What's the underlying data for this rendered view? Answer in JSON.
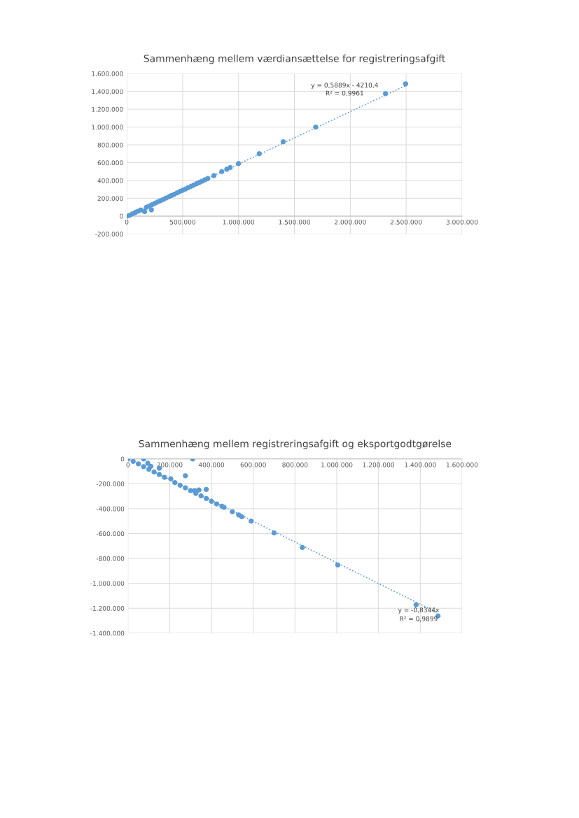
{
  "chart_data": [
    {
      "type": "scatter",
      "title": "Sammenhæng mellem værdiansættelse for registreringsafgift",
      "grid": true,
      "legend": false,
      "marker": "circle",
      "xlim": [
        0,
        3000000
      ],
      "xticks": [
        0,
        {
          "value": 500000,
          "label": "500.000"
        },
        {
          "value": 1000000,
          "label": "1.000.000"
        },
        {
          "value": 1500000,
          "label": "1.500.000"
        },
        {
          "value": 2000000,
          "label": "2.000.000"
        },
        {
          "value": 2500000,
          "label": "2.500.000"
        },
        {
          "value": 3000000,
          "label": "3.000.000"
        }
      ],
      "ylim": [
        -200000,
        1600000
      ],
      "yticks": [
        {
          "value": -200000,
          "label": "-200.000"
        },
        0,
        {
          "value": 200000,
          "label": "200.000"
        },
        {
          "value": 400000,
          "label": "400.000"
        },
        {
          "value": 600000,
          "label": "600.000"
        },
        {
          "value": 800000,
          "label": "800.000"
        },
        {
          "value": 1000000,
          "label": "1.000.000"
        },
        {
          "value": 1200000,
          "label": "1.200.000"
        },
        {
          "value": 1400000,
          "label": "1.400.000"
        },
        {
          "value": 1600000,
          "label": "1.600.000"
        }
      ],
      "series": [
        {
          "color": "#5b9bd5",
          "x": [
            0,
            25000,
            50000,
            75000,
            100000,
            125000,
            160000,
            175000,
            200000,
            220000,
            225000,
            250000,
            275000,
            300000,
            325000,
            350000,
            375000,
            400000,
            425000,
            450000,
            475000,
            500000,
            525000,
            550000,
            575000,
            600000,
            625000,
            650000,
            675000,
            700000,
            725000,
            780000,
            850000,
            895000,
            925000,
            1000000,
            1185000,
            1400000,
            1690000,
            2315000,
            2495000
          ],
          "values": [
            0,
            10000,
            25000,
            40000,
            55000,
            69000,
            50000,
            99000,
            113000,
            70000,
            128000,
            143000,
            158000,
            172000,
            187000,
            202000,
            217000,
            231000,
            246000,
            261000,
            276000,
            290000,
            305000,
            320000,
            335000,
            349000,
            364000,
            379000,
            393000,
            408000,
            423000,
            455000,
            500000,
            527000,
            545000,
            590000,
            700000,
            835000,
            1000000,
            1375000,
            1485000
          ]
        },
        {
          "type": "line",
          "color": "#5b9bd5",
          "line_style": "dotted",
          "marker": "none",
          "x": [
            0,
            2500000
          ],
          "values": [
            -4000,
            1468000
          ]
        }
      ],
      "annotations": [
        "y = 0,5889x - 4210,4",
        "R² = 0,9961"
      ]
    },
    {
      "type": "scatter",
      "title": "Sammenhæng mellem registreringsafgift og eksportgodtgørelse",
      "grid": true,
      "legend": false,
      "marker": "circle",
      "xlim": [
        0,
        1600000
      ],
      "xticks": [
        0,
        {
          "value": 200000,
          "label": "200.000"
        },
        {
          "value": 400000,
          "label": "400.000"
        },
        {
          "value": 600000,
          "label": "600.000"
        },
        {
          "value": 800000,
          "label": "800.000"
        },
        {
          "value": 1000000,
          "label": "1.000.000"
        },
        {
          "value": 1200000,
          "label": "1.200.000"
        },
        {
          "value": 1400000,
          "label": "1.400.000"
        },
        {
          "value": 1600000,
          "label": "1.600.000"
        }
      ],
      "ylim": [
        -1400000,
        0
      ],
      "yticks": [
        {
          "value": -1400000,
          "label": "-1.400.000"
        },
        {
          "value": -1200000,
          "label": "-1.200.000"
        },
        {
          "value": -1000000,
          "label": "-1.000.000"
        },
        {
          "value": -800000,
          "label": "-800.000"
        },
        {
          "value": -600000,
          "label": "-600.000"
        },
        {
          "value": -400000,
          "label": "-400.000"
        },
        {
          "value": -200000,
          "label": "-200.000"
        },
        0
      ],
      "series": [
        {
          "color": "#5b9bd5",
          "x": [
            0,
            25000,
            50000,
            75000,
            75000,
            95000,
            100000,
            110000,
            125000,
            150000,
            150000,
            175000,
            205000,
            225000,
            250000,
            275000,
            275000,
            300000,
            310000,
            320000,
            325000,
            340000,
            350000,
            375000,
            375000,
            400000,
            425000,
            450000,
            460000,
            500000,
            530000,
            545000,
            590000,
            700000,
            835000,
            1005000,
            1380000,
            1485000
          ],
          "values": [
            0,
            -20000,
            -40000,
            -62000,
            0,
            -35000,
            -83000,
            -60000,
            -105000,
            -125000,
            -75000,
            -148000,
            -160000,
            -190000,
            -212000,
            -232000,
            -135000,
            -255000,
            0,
            -255000,
            -277000,
            -250000,
            -297000,
            -318000,
            -245000,
            -340000,
            -362000,
            -380000,
            -390000,
            -425000,
            -450000,
            -465000,
            -500000,
            -595000,
            -712000,
            -852000,
            -1172000,
            -1262000
          ]
        },
        {
          "type": "line",
          "color": "#5b9bd5",
          "line_style": "dotted",
          "marker": "none",
          "x": [
            0,
            1485000
          ],
          "values": [
            0,
            -1239000
          ]
        }
      ],
      "annotations": [
        "y = -0,8344x",
        "R² = 0,9899"
      ]
    }
  ]
}
